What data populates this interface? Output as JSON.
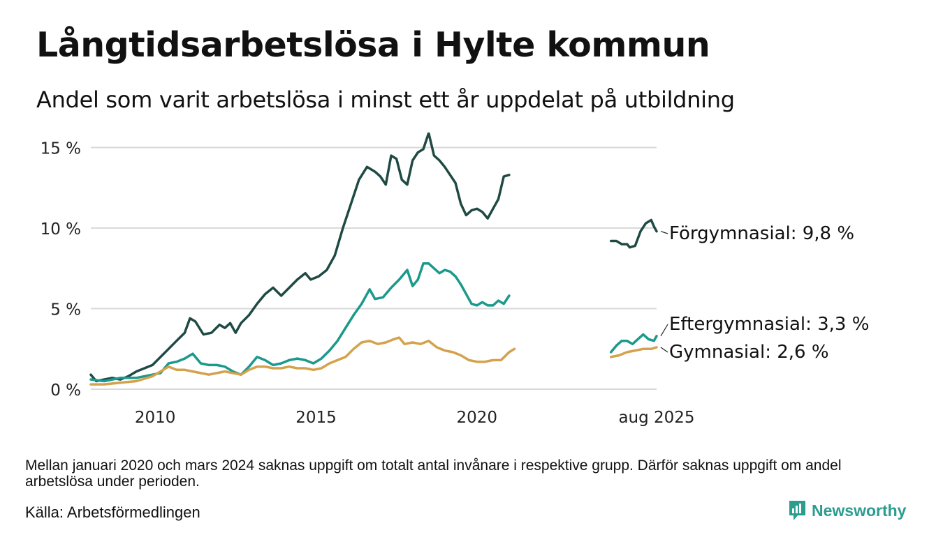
{
  "title": "Långtidsarbetslösa i Hylte kommun",
  "subtitle": "Andel som varit arbetslösa i minst ett år uppdelat på utbildning",
  "note": "Mellan januari 2020 och mars 2024 saknas uppgift om totalt antal invånare i respektive grupp. Därför saknas uppgift om andel arbetslösa under perioden.",
  "source": "Källa: Arbetsförmedlingen",
  "brand": "Newsworthy",
  "colors": {
    "brand": "#2a9d8f",
    "grid": "#d9d9d9"
  },
  "chart_data": {
    "type": "line",
    "title": "Långtidsarbetslösa i Hylte kommun",
    "subtitle": "Andel som varit arbetslösa i minst ett år uppdelat på utbildning",
    "x_axis": {
      "type": "time",
      "range": [
        "2008-01",
        "2025-08"
      ],
      "ticks": [
        {
          "x": "2010-01",
          "label": "2010"
        },
        {
          "x": "2015-01",
          "label": "2015"
        },
        {
          "x": "2020-01",
          "label": "2020"
        },
        {
          "x": "2025-08",
          "label": "aug 2025"
        }
      ]
    },
    "y_axis": {
      "range": [
        0,
        15.5
      ],
      "unit": "%",
      "ticks": [
        {
          "y": 0,
          "label": "0 %"
        },
        {
          "y": 5,
          "label": "5 %"
        },
        {
          "y": 10,
          "label": "10 %"
        },
        {
          "y": 15,
          "label": "15 %"
        }
      ]
    },
    "grid": true,
    "legend": "direct labels at line ends",
    "series": [
      {
        "name": "Förgymnasial",
        "end_label": "Förgymnasial: 9,8 %",
        "color": "#1f4a44",
        "points": [
          [
            "2008-01",
            0.9
          ],
          [
            "2008-03",
            0.5
          ],
          [
            "2008-06",
            0.6
          ],
          [
            "2008-09",
            0.7
          ],
          [
            "2008-12",
            0.6
          ],
          [
            "2009-03",
            0.8
          ],
          [
            "2009-06",
            1.1
          ],
          [
            "2009-09",
            1.3
          ],
          [
            "2009-12",
            1.5
          ],
          [
            "2010-03",
            2.0
          ],
          [
            "2010-06",
            2.5
          ],
          [
            "2010-09",
            3.0
          ],
          [
            "2010-12",
            3.5
          ],
          [
            "2011-02",
            4.4
          ],
          [
            "2011-04",
            4.2
          ],
          [
            "2011-07",
            3.4
          ],
          [
            "2011-10",
            3.5
          ],
          [
            "2012-01",
            4.0
          ],
          [
            "2012-03",
            3.8
          ],
          [
            "2012-05",
            4.1
          ],
          [
            "2012-07",
            3.5
          ],
          [
            "2012-09",
            4.1
          ],
          [
            "2012-12",
            4.6
          ],
          [
            "2013-03",
            5.3
          ],
          [
            "2013-06",
            5.9
          ],
          [
            "2013-09",
            6.3
          ],
          [
            "2013-12",
            5.8
          ],
          [
            "2014-03",
            6.3
          ],
          [
            "2014-06",
            6.8
          ],
          [
            "2014-09",
            7.2
          ],
          [
            "2014-11",
            6.8
          ],
          [
            "2015-02",
            7.0
          ],
          [
            "2015-05",
            7.4
          ],
          [
            "2015-08",
            8.3
          ],
          [
            "2015-11",
            10.0
          ],
          [
            "2016-02",
            11.5
          ],
          [
            "2016-05",
            13.0
          ],
          [
            "2016-08",
            13.8
          ],
          [
            "2016-11",
            13.5
          ],
          [
            "2017-01",
            13.2
          ],
          [
            "2017-03",
            12.7
          ],
          [
            "2017-05",
            14.5
          ],
          [
            "2017-07",
            14.3
          ],
          [
            "2017-09",
            13.0
          ],
          [
            "2017-11",
            12.7
          ],
          [
            "2018-01",
            14.2
          ],
          [
            "2018-03",
            14.7
          ],
          [
            "2018-05",
            14.9
          ],
          [
            "2018-07",
            15.9
          ],
          [
            "2018-09",
            14.5
          ],
          [
            "2018-11",
            14.2
          ],
          [
            "2019-01",
            13.8
          ],
          [
            "2019-03",
            13.3
          ],
          [
            "2019-05",
            12.8
          ],
          [
            "2019-07",
            11.5
          ],
          [
            "2019-09",
            10.8
          ],
          [
            "2019-11",
            11.1
          ],
          [
            "2020-01",
            11.2
          ],
          [
            "2020-03",
            11.0
          ],
          [
            "2020-05",
            10.6
          ],
          [
            "2020-07",
            11.2
          ],
          [
            "2020-09",
            11.8
          ],
          [
            "2020-11",
            13.2
          ],
          [
            "2021-01",
            13.3
          ],
          [
            null,
            null
          ],
          [
            "2024-03",
            9.2
          ],
          [
            "2024-05",
            9.2
          ],
          [
            "2024-07",
            9.0
          ],
          [
            "2024-09",
            9.0
          ],
          [
            "2024-10",
            8.8
          ],
          [
            "2024-12",
            8.9
          ],
          [
            "2025-02",
            9.8
          ],
          [
            "2025-04",
            10.3
          ],
          [
            "2025-06",
            10.5
          ],
          [
            "2025-07",
            10.1
          ],
          [
            "2025-08",
            9.8
          ]
        ]
      },
      {
        "name": "Eftergymnasial",
        "end_label": "Eftergymnasial: 3,3 %",
        "color": "#1b998b",
        "points": [
          [
            "2008-01",
            0.6
          ],
          [
            "2008-06",
            0.5
          ],
          [
            "2008-12",
            0.7
          ],
          [
            "2009-06",
            0.7
          ],
          [
            "2009-12",
            0.9
          ],
          [
            "2010-03",
            1.0
          ],
          [
            "2010-06",
            1.6
          ],
          [
            "2010-09",
            1.7
          ],
          [
            "2010-12",
            1.9
          ],
          [
            "2011-03",
            2.2
          ],
          [
            "2011-06",
            1.6
          ],
          [
            "2011-09",
            1.5
          ],
          [
            "2011-12",
            1.5
          ],
          [
            "2012-03",
            1.4
          ],
          [
            "2012-06",
            1.1
          ],
          [
            "2012-09",
            0.9
          ],
          [
            "2012-12",
            1.4
          ],
          [
            "2013-03",
            2.0
          ],
          [
            "2013-06",
            1.8
          ],
          [
            "2013-09",
            1.5
          ],
          [
            "2013-12",
            1.6
          ],
          [
            "2014-03",
            1.8
          ],
          [
            "2014-06",
            1.9
          ],
          [
            "2014-09",
            1.8
          ],
          [
            "2014-12",
            1.6
          ],
          [
            "2015-03",
            1.9
          ],
          [
            "2015-06",
            2.4
          ],
          [
            "2015-09",
            3.0
          ],
          [
            "2015-12",
            3.8
          ],
          [
            "2016-03",
            4.6
          ],
          [
            "2016-06",
            5.3
          ],
          [
            "2016-09",
            6.2
          ],
          [
            "2016-11",
            5.6
          ],
          [
            "2017-02",
            5.7
          ],
          [
            "2017-05",
            6.3
          ],
          [
            "2017-08",
            6.8
          ],
          [
            "2017-11",
            7.4
          ],
          [
            "2018-01",
            6.4
          ],
          [
            "2018-03",
            6.8
          ],
          [
            "2018-05",
            7.8
          ],
          [
            "2018-07",
            7.8
          ],
          [
            "2018-09",
            7.5
          ],
          [
            "2018-11",
            7.2
          ],
          [
            "2019-01",
            7.4
          ],
          [
            "2019-03",
            7.3
          ],
          [
            "2019-05",
            7.0
          ],
          [
            "2019-07",
            6.5
          ],
          [
            "2019-09",
            5.9
          ],
          [
            "2019-11",
            5.3
          ],
          [
            "2020-01",
            5.2
          ],
          [
            "2020-03",
            5.4
          ],
          [
            "2020-05",
            5.2
          ],
          [
            "2020-07",
            5.2
          ],
          [
            "2020-09",
            5.5
          ],
          [
            "2020-11",
            5.3
          ],
          [
            "2021-01",
            5.8
          ],
          [
            null,
            null
          ],
          [
            "2024-03",
            2.3
          ],
          [
            "2024-05",
            2.7
          ],
          [
            "2024-07",
            3.0
          ],
          [
            "2024-09",
            3.0
          ],
          [
            "2024-11",
            2.8
          ],
          [
            "2025-01",
            3.1
          ],
          [
            "2025-03",
            3.4
          ],
          [
            "2025-05",
            3.1
          ],
          [
            "2025-07",
            3.0
          ],
          [
            "2025-08",
            3.3
          ]
        ]
      },
      {
        "name": "Gymnasial",
        "end_label": "Gymnasial: 2,6 %",
        "color": "#d4a24c",
        "points": [
          [
            "2008-01",
            0.3
          ],
          [
            "2008-06",
            0.3
          ],
          [
            "2008-12",
            0.4
          ],
          [
            "2009-06",
            0.5
          ],
          [
            "2009-12",
            0.8
          ],
          [
            "2010-03",
            1.1
          ],
          [
            "2010-06",
            1.4
          ],
          [
            "2010-09",
            1.2
          ],
          [
            "2010-12",
            1.2
          ],
          [
            "2011-03",
            1.1
          ],
          [
            "2011-06",
            1.0
          ],
          [
            "2011-09",
            0.9
          ],
          [
            "2011-12",
            1.0
          ],
          [
            "2012-03",
            1.1
          ],
          [
            "2012-06",
            1.0
          ],
          [
            "2012-09",
            0.9
          ],
          [
            "2012-12",
            1.2
          ],
          [
            "2013-03",
            1.4
          ],
          [
            "2013-06",
            1.4
          ],
          [
            "2013-09",
            1.3
          ],
          [
            "2013-12",
            1.3
          ],
          [
            "2014-03",
            1.4
          ],
          [
            "2014-06",
            1.3
          ],
          [
            "2014-09",
            1.3
          ],
          [
            "2014-12",
            1.2
          ],
          [
            "2015-03",
            1.3
          ],
          [
            "2015-06",
            1.6
          ],
          [
            "2015-09",
            1.8
          ],
          [
            "2015-12",
            2.0
          ],
          [
            "2016-03",
            2.5
          ],
          [
            "2016-06",
            2.9
          ],
          [
            "2016-09",
            3.0
          ],
          [
            "2016-12",
            2.8
          ],
          [
            "2017-03",
            2.9
          ],
          [
            "2017-06",
            3.1
          ],
          [
            "2017-08",
            3.2
          ],
          [
            "2017-10",
            2.8
          ],
          [
            "2018-01",
            2.9
          ],
          [
            "2018-04",
            2.8
          ],
          [
            "2018-07",
            3.0
          ],
          [
            "2018-10",
            2.6
          ],
          [
            "2019-01",
            2.4
          ],
          [
            "2019-04",
            2.3
          ],
          [
            "2019-07",
            2.1
          ],
          [
            "2019-10",
            1.8
          ],
          [
            "2020-01",
            1.7
          ],
          [
            "2020-04",
            1.7
          ],
          [
            "2020-07",
            1.8
          ],
          [
            "2020-10",
            1.8
          ],
          [
            "2021-01",
            2.3
          ],
          [
            "2021-03",
            2.5
          ],
          [
            null,
            null
          ],
          [
            "2024-03",
            2.0
          ],
          [
            "2024-06",
            2.1
          ],
          [
            "2024-09",
            2.3
          ],
          [
            "2024-12",
            2.4
          ],
          [
            "2025-03",
            2.5
          ],
          [
            "2025-06",
            2.5
          ],
          [
            "2025-08",
            2.6
          ]
        ]
      }
    ]
  }
}
